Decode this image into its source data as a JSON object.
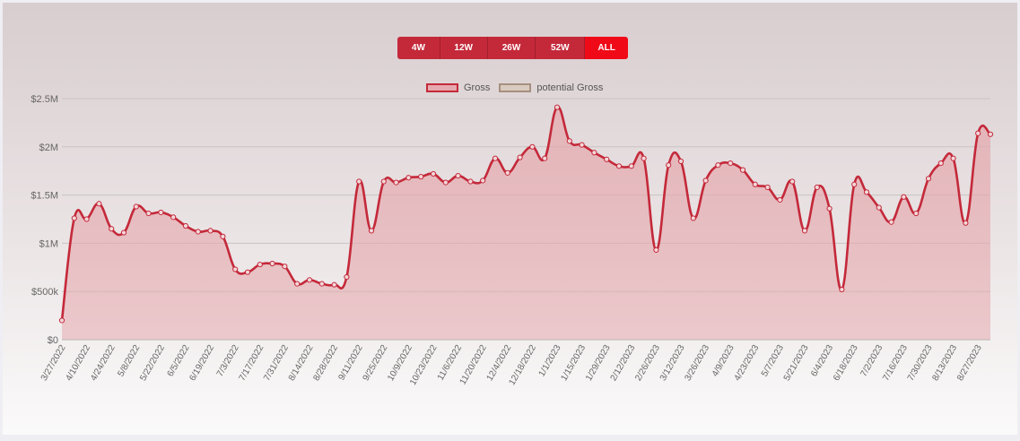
{
  "range_buttons": [
    {
      "label": "4W",
      "active": false
    },
    {
      "label": "12W",
      "active": false
    },
    {
      "label": "26W",
      "active": false
    },
    {
      "label": "52W",
      "active": false
    },
    {
      "label": "ALL",
      "active": true
    }
  ],
  "colors": {
    "gross_line": "#c4293a",
    "gross_fill": "#e5a9ae",
    "potential_fill": "#d9cbbf",
    "potential_border": "#a68f7e",
    "active_button": "#f00a18"
  },
  "chart_data": {
    "type": "area",
    "legend": [
      "Gross",
      "potential Gross"
    ],
    "legend_position": "top-center",
    "grid": true,
    "ylim": [
      0,
      2500000
    ],
    "y_ticks": [
      {
        "value": 0,
        "label": "$0"
      },
      {
        "value": 500000,
        "label": "$500k"
      },
      {
        "value": 1000000,
        "label": "$1M"
      },
      {
        "value": 1500000,
        "label": "$1.5M"
      },
      {
        "value": 2000000,
        "label": "$2M"
      },
      {
        "value": 2500000,
        "label": "$2.5M"
      }
    ],
    "x_tick_labels": [
      "3/27/2022",
      "4/10/2022",
      "4/24/2022",
      "5/8/2022",
      "5/22/2022",
      "6/5/2022",
      "6/19/2022",
      "7/3/2022",
      "7/17/2022",
      "7/31/2022",
      "8/14/2022",
      "8/28/2022",
      "9/11/2022",
      "9/25/2022",
      "10/9/2022",
      "10/23/2022",
      "11/6/2022",
      "11/20/2022",
      "12/4/2022",
      "12/18/2022",
      "1/1/2023",
      "1/15/2023",
      "1/29/2023",
      "2/12/2023",
      "2/26/2023",
      "3/12/2023",
      "3/26/2023",
      "4/9/2023",
      "4/23/2023",
      "5/7/2023",
      "5/21/2023",
      "6/4/2023",
      "6/18/2023",
      "7/2/2023",
      "7/16/2023",
      "7/30/2023",
      "8/13/2023",
      "8/27/2023"
    ],
    "series": [
      {
        "name": "Gross",
        "values": [
          200000,
          1260000,
          1250000,
          1410000,
          1150000,
          1110000,
          1380000,
          1310000,
          1320000,
          1270000,
          1180000,
          1120000,
          1130000,
          1070000,
          730000,
          700000,
          780000,
          790000,
          760000,
          580000,
          620000,
          580000,
          570000,
          650000,
          1640000,
          1130000,
          1640000,
          1630000,
          1680000,
          1690000,
          1720000,
          1630000,
          1700000,
          1640000,
          1650000,
          1880000,
          1730000,
          1890000,
          2000000,
          1880000,
          2410000,
          2060000,
          2020000,
          1940000,
          1870000,
          1800000,
          1800000,
          1880000,
          930000,
          1810000,
          1850000,
          1260000,
          1650000,
          1810000,
          1830000,
          1760000,
          1610000,
          1580000,
          1450000,
          1640000,
          1130000,
          1580000,
          1360000,
          520000,
          1610000,
          1530000,
          1370000,
          1220000,
          1480000,
          1310000,
          1670000,
          1830000,
          1880000,
          1210000,
          2140000,
          2130000
        ]
      },
      {
        "name": "potential Gross",
        "values": []
      }
    ]
  }
}
